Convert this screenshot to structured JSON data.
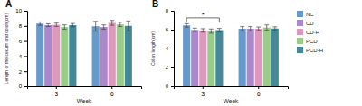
{
  "chart_data": [
    {
      "type": "bar",
      "title": "A",
      "xlabel": "Week",
      "ylabel": "Length of the cecum and colon(cm)",
      "categories": [
        "3",
        "6"
      ],
      "series": [
        {
          "name": "NC",
          "color": "#6699cc",
          "values": [
            8.3,
            7.95
          ],
          "errors": [
            0.22,
            0.65
          ]
        },
        {
          "name": "CD",
          "color": "#aa88cc",
          "values": [
            8.1,
            7.85
          ],
          "errors": [
            0.18,
            0.28
          ]
        },
        {
          "name": "CD-H",
          "color": "#dd99bb",
          "values": [
            8.15,
            8.4
          ],
          "errors": [
            0.22,
            0.32
          ]
        },
        {
          "name": "PCD",
          "color": "#99cc88",
          "values": [
            7.85,
            8.2
          ],
          "errors": [
            0.28,
            0.28
          ]
        },
        {
          "name": "PCD-H",
          "color": "#448899",
          "values": [
            8.1,
            8.0
          ],
          "errors": [
            0.22,
            0.65
          ]
        }
      ],
      "ylim": [
        0,
        10
      ],
      "yticks": [
        0,
        2,
        4,
        6,
        8,
        10
      ]
    },
    {
      "type": "bar",
      "title": "B",
      "xlabel": "Week",
      "ylabel": "Colon length(cm)",
      "categories": [
        "3",
        "6"
      ],
      "series": [
        {
          "name": "NC",
          "color": "#6699cc",
          "values": [
            6.45,
            6.1
          ],
          "errors": [
            0.18,
            0.22
          ]
        },
        {
          "name": "CD",
          "color": "#aa88cc",
          "values": [
            5.98,
            6.1
          ],
          "errors": [
            0.18,
            0.22
          ]
        },
        {
          "name": "CD-H",
          "color": "#dd99bb",
          "values": [
            5.92,
            6.1
          ],
          "errors": [
            0.18,
            0.18
          ]
        },
        {
          "name": "PCD",
          "color": "#99cc88",
          "values": [
            5.85,
            6.22
          ],
          "errors": [
            0.22,
            0.28
          ]
        },
        {
          "name": "PCD-H",
          "color": "#448899",
          "values": [
            5.95,
            6.12
          ],
          "errors": [
            0.18,
            0.18
          ]
        }
      ],
      "ylim": [
        0,
        8
      ],
      "yticks": [
        0,
        2,
        4,
        6,
        8
      ],
      "legend": "right",
      "annotations": [
        {
          "text": "*",
          "category": "3",
          "series": [
            "NC",
            "PCD-H"
          ],
          "y": [
            6.75,
            7.25
          ]
        }
      ]
    }
  ]
}
